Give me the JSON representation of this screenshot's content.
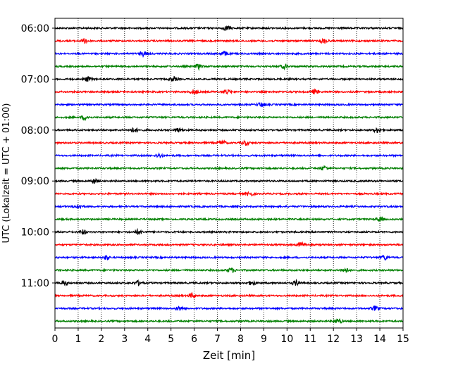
{
  "chart_data": {
    "type": "line",
    "title": "",
    "xlabel": "Zeit  [min]",
    "ylabel": "UTC (Lokalzeit = UTC + 01:00)",
    "xlim": [
      0,
      15
    ],
    "xticks": [
      0,
      1,
      2,
      3,
      4,
      5,
      6,
      7,
      8,
      9,
      10,
      11,
      12,
      13,
      14,
      15
    ],
    "yticks": [
      "06:00",
      "07:00",
      "08:00",
      "09:00",
      "10:00",
      "11:00"
    ],
    "grid": "vertical-dotted",
    "trace_interval_minutes": 15,
    "first_trace": "06:00",
    "color_cycle": [
      "#000000",
      "#ff0000",
      "#0000ff",
      "#007f00"
    ],
    "traces": [
      {
        "start": "06:00",
        "events_min": [
          7.4
        ]
      },
      {
        "start": "06:15",
        "events_min": [
          1.3,
          11.6
        ]
      },
      {
        "start": "06:30",
        "events_min": [
          7.3,
          3.8
        ]
      },
      {
        "start": "06:45",
        "events_min": [
          6.2,
          9.9
        ]
      },
      {
        "start": "07:00",
        "events_min": [
          1.4,
          5.1
        ]
      },
      {
        "start": "07:15",
        "events_min": [
          6.0,
          7.4,
          11.2
        ]
      },
      {
        "start": "07:30",
        "events_min": [
          8.9
        ]
      },
      {
        "start": "07:45",
        "events_min": [
          1.3
        ]
      },
      {
        "start": "08:00",
        "events_min": [
          3.4,
          5.3,
          13.9
        ]
      },
      {
        "start": "08:15",
        "events_min": [
          7.2,
          8.2
        ]
      },
      {
        "start": "08:30",
        "events_min": [
          4.5
        ]
      },
      {
        "start": "08:45",
        "events_min": [
          11.6
        ]
      },
      {
        "start": "09:00",
        "events_min": [
          1.7
        ]
      },
      {
        "start": "09:15",
        "events_min": [
          8.4
        ]
      },
      {
        "start": "09:30",
        "events_min": [
          1.0
        ]
      },
      {
        "start": "09:45",
        "events_min": [
          14.0
        ]
      },
      {
        "start": "10:00",
        "events_min": [
          1.2,
          3.6
        ]
      },
      {
        "start": "10:15",
        "events_min": [
          10.6
        ]
      },
      {
        "start": "10:30",
        "events_min": [
          2.2,
          14.2
        ]
      },
      {
        "start": "10:45",
        "events_min": [
          7.6,
          12.5
        ]
      },
      {
        "start": "11:00",
        "events_min": [
          0.4,
          3.6,
          8.5,
          10.4
        ]
      },
      {
        "start": "11:15",
        "events_min": [
          5.9
        ]
      },
      {
        "start": "11:30",
        "events_min": [
          5.4,
          13.8
        ]
      },
      {
        "start": "11:45",
        "events_min": [
          12.2
        ]
      }
    ]
  }
}
